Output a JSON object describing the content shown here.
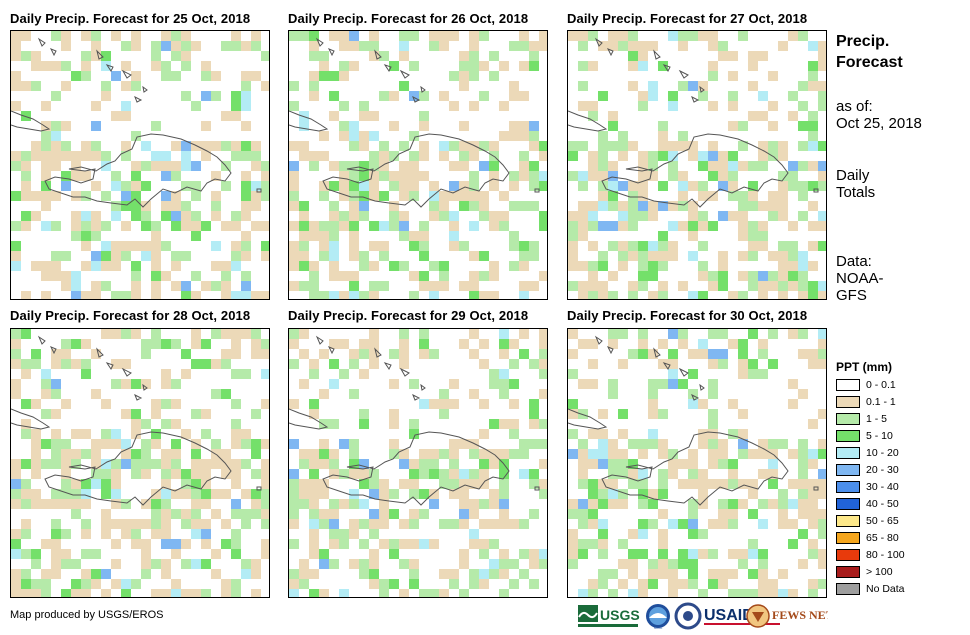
{
  "panels": [
    {
      "title": "Daily Precip. Forecast for 25 Oct, 2018",
      "seed": 11
    },
    {
      "title": "Daily Precip. Forecast for 26 Oct, 2018",
      "seed": 27
    },
    {
      "title": "Daily Precip. Forecast for 27 Oct, 2018",
      "seed": 43
    },
    {
      "title": "Daily Precip. Forecast for 28 Oct, 2018",
      "seed": 59
    },
    {
      "title": "Daily Precip. Forecast for 29 Oct, 2018",
      "seed": 71
    },
    {
      "title": "Daily Precip. Forecast for 30 Oct, 2018",
      "seed": 89
    }
  ],
  "sidebar": {
    "title_line1": "Precip.",
    "title_line2": "Forecast",
    "asof_label": "as of:",
    "asof_date": "Oct 25, 2018",
    "daily_line1": "Daily",
    "daily_line2": "Totals",
    "data_line1": "Data:",
    "data_line2": "NOAA-",
    "data_line3": "GFS"
  },
  "legend": {
    "title": "PPT (mm)",
    "items": [
      {
        "label": "0 - 0.1",
        "color": "#ffffff"
      },
      {
        "label": "0.1 - 1",
        "color": "#ecd9b8"
      },
      {
        "label": "1 - 5",
        "color": "#b5eaa9"
      },
      {
        "label": "5 - 10",
        "color": "#74e06a"
      },
      {
        "label": "10 - 20",
        "color": "#b3ecf5"
      },
      {
        "label": "20 - 30",
        "color": "#7fb7f2"
      },
      {
        "label": "30 - 40",
        "color": "#4c8fec"
      },
      {
        "label": "40 - 50",
        "color": "#2163d8"
      },
      {
        "label": "50 - 65",
        "color": "#fde88a"
      },
      {
        "label": "65 - 80",
        "color": "#f5a61e"
      },
      {
        "label": "80 - 100",
        "color": "#e83a0c"
      },
      {
        "label": "> 100",
        "color": "#a81c1c"
      },
      {
        "label": "No Data",
        "color": "#9e9e9e"
      }
    ]
  },
  "footer": {
    "credit": "Map produced by USGS/EROS",
    "logos": [
      "USGS",
      "NOAA",
      "USAID",
      "FEWS NET"
    ]
  }
}
